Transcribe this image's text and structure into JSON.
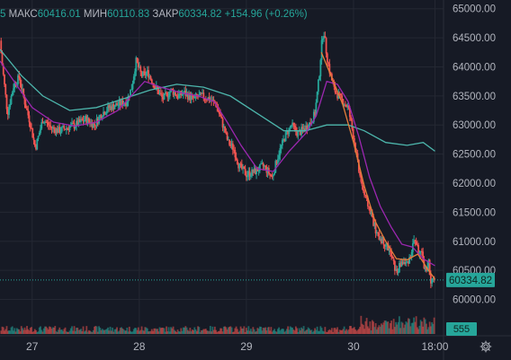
{
  "header": {
    "partial_value": "5",
    "high_label": "МАКС",
    "high_value": "60416.01",
    "low_label": "МИН",
    "low_value": "60110.83",
    "close_label": "ЗАКР",
    "close_value": "60334.82",
    "change_text": "+154.96 (+0.26%)"
  },
  "colors": {
    "background": "#161a25",
    "up": "#26a69a",
    "down": "#ef5350",
    "ma_fast": "#9c27b0",
    "ma_slow": "#4db6ac",
    "ma_mid": "#e57f3a",
    "text": "#b2b5be",
    "grid": "#242833"
  },
  "icons": {
    "settings": "gear-icon"
  },
  "chart_data": {
    "type": "candlestick",
    "y_axis": {
      "ticks": [
        "65000.00",
        "64500.00",
        "64000.00",
        "63500.00",
        "63000.00",
        "62500.00",
        "62000.00",
        "61500.00",
        "61000.00",
        "60500.00",
        "60000.00"
      ],
      "ylim": [
        59900,
        65150
      ],
      "position": "right"
    },
    "x_axis": {
      "ticks": [
        "27",
        "28",
        "29",
        "30",
        "18:00"
      ],
      "tick_positions": [
        0.5,
        1.5,
        2.5,
        3.5,
        4.26
      ],
      "xlim": [
        0.2,
        4.34
      ]
    },
    "last_price": {
      "value": 60334.82,
      "label": "60334.82"
    },
    "volume_label": "555",
    "price_path": [
      [
        0.2,
        64450
      ],
      [
        0.22,
        64050
      ],
      [
        0.27,
        63200
      ],
      [
        0.33,
        63700
      ],
      [
        0.38,
        63820
      ],
      [
        0.43,
        63400
      ],
      [
        0.48,
        63050
      ],
      [
        0.53,
        62600
      ],
      [
        0.6,
        63100
      ],
      [
        0.68,
        62950
      ],
      [
        0.75,
        62900
      ],
      [
        0.82,
        62950
      ],
      [
        0.9,
        63000
      ],
      [
        1.0,
        63100
      ],
      [
        1.08,
        63000
      ],
      [
        1.15,
        63200
      ],
      [
        1.22,
        63300
      ],
      [
        1.3,
        63350
      ],
      [
        1.38,
        63400
      ],
      [
        1.43,
        63650
      ],
      [
        1.47,
        64100
      ],
      [
        1.52,
        63850
      ],
      [
        1.58,
        63900
      ],
      [
        1.65,
        63650
      ],
      [
        1.72,
        63450
      ],
      [
        1.8,
        63600
      ],
      [
        1.86,
        63500
      ],
      [
        1.92,
        63550
      ],
      [
        2.0,
        63450
      ],
      [
        2.08,
        63500
      ],
      [
        2.15,
        63450
      ],
      [
        2.22,
        63350
      ],
      [
        2.28,
        63000
      ],
      [
        2.33,
        62700
      ],
      [
        2.38,
        62600
      ],
      [
        2.43,
        62300
      ],
      [
        2.5,
        62150
      ],
      [
        2.58,
        62200
      ],
      [
        2.66,
        62300
      ],
      [
        2.74,
        62100
      ],
      [
        2.8,
        62500
      ],
      [
        2.86,
        62800
      ],
      [
        2.92,
        63000
      ],
      [
        2.98,
        62850
      ],
      [
        3.05,
        62950
      ],
      [
        3.1,
        63050
      ],
      [
        3.14,
        63200
      ],
      [
        3.18,
        63850
      ],
      [
        3.2,
        64350
      ],
      [
        3.22,
        64650
      ],
      [
        3.25,
        64200
      ],
      [
        3.28,
        63900
      ],
      [
        3.32,
        63600
      ],
      [
        3.38,
        63450
      ],
      [
        3.45,
        63300
      ],
      [
        3.5,
        62800
      ],
      [
        3.55,
        62200
      ],
      [
        3.6,
        61800
      ],
      [
        3.66,
        61500
      ],
      [
        3.72,
        61100
      ],
      [
        3.78,
        61000
      ],
      [
        3.82,
        60900
      ],
      [
        3.86,
        60700
      ],
      [
        3.9,
        60450
      ],
      [
        3.95,
        60650
      ],
      [
        3.99,
        60600
      ],
      [
        4.03,
        60750
      ],
      [
        4.07,
        61050
      ],
      [
        4.11,
        60800
      ],
      [
        4.14,
        60750
      ],
      [
        4.17,
        60500
      ],
      [
        4.2,
        60650
      ],
      [
        4.22,
        60250
      ],
      [
        4.24,
        60330
      ],
      [
        4.26,
        60334.82
      ]
    ],
    "ma_fast": [
      [
        0.2,
        64100
      ],
      [
        0.35,
        63700
      ],
      [
        0.5,
        63300
      ],
      [
        0.7,
        63050
      ],
      [
        0.9,
        62980
      ],
      [
        1.1,
        63050
      ],
      [
        1.3,
        63250
      ],
      [
        1.45,
        63550
      ],
      [
        1.55,
        63750
      ],
      [
        1.7,
        63650
      ],
      [
        1.9,
        63550
      ],
      [
        2.05,
        63500
      ],
      [
        2.2,
        63400
      ],
      [
        2.32,
        63050
      ],
      [
        2.45,
        62650
      ],
      [
        2.6,
        62250
      ],
      [
        2.75,
        62200
      ],
      [
        2.9,
        62550
      ],
      [
        3.05,
        62850
      ],
      [
        3.15,
        63150
      ],
      [
        3.25,
        63750
      ],
      [
        3.35,
        63700
      ],
      [
        3.45,
        63400
      ],
      [
        3.55,
        62800
      ],
      [
        3.65,
        62100
      ],
      [
        3.75,
        61600
      ],
      [
        3.85,
        61250
      ],
      [
        3.95,
        60950
      ],
      [
        4.05,
        60900
      ],
      [
        4.15,
        60700
      ],
      [
        4.26,
        60580
      ]
    ],
    "ma_mid": [
      [
        3.2,
        64250
      ],
      [
        3.3,
        63800
      ],
      [
        3.4,
        63350
      ],
      [
        3.5,
        62700
      ],
      [
        3.6,
        61950
      ],
      [
        3.7,
        61350
      ],
      [
        3.8,
        61000
      ],
      [
        3.9,
        60700
      ],
      [
        4.0,
        60680
      ],
      [
        4.1,
        60780
      ],
      [
        4.2,
        60500
      ],
      [
        4.26,
        60350
      ]
    ],
    "ma_slow": [
      [
        0.2,
        64300
      ],
      [
        0.4,
        63850
      ],
      [
        0.6,
        63500
      ],
      [
        0.85,
        63250
      ],
      [
        1.1,
        63300
      ],
      [
        1.35,
        63450
      ],
      [
        1.6,
        63600
      ],
      [
        1.85,
        63700
      ],
      [
        2.1,
        63650
      ],
      [
        2.35,
        63500
      ],
      [
        2.6,
        63200
      ],
      [
        2.85,
        62900
      ],
      [
        3.05,
        62900
      ],
      [
        3.25,
        63000
      ],
      [
        3.45,
        63000
      ],
      [
        3.6,
        62900
      ],
      [
        3.8,
        62700
      ],
      [
        4.0,
        62650
      ],
      [
        4.15,
        62700
      ],
      [
        4.26,
        62550
      ]
    ]
  }
}
